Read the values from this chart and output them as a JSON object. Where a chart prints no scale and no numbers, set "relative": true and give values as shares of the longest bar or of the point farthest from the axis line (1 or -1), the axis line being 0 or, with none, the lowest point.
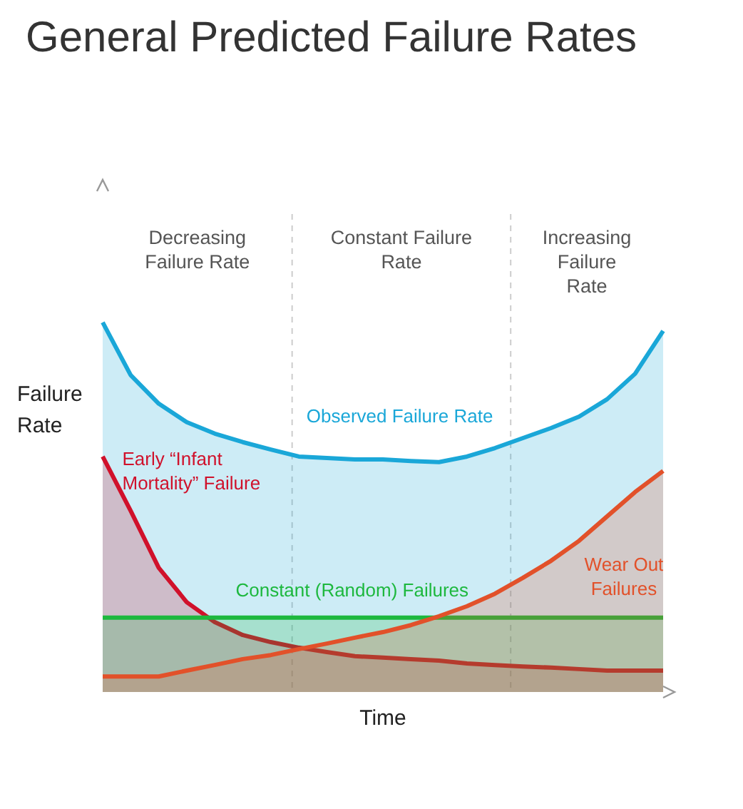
{
  "chart_data": {
    "type": "area",
    "title": "General Predicted Failure Rates",
    "xlabel": "Time",
    "ylabel": "Failure Rate",
    "relative": true,
    "annotations": [
      "Decreasing Failure Rate",
      "Constant Failure Rate",
      "Increasing Failure Rate"
    ],
    "categories": [
      null,
      null,
      null,
      null,
      null,
      null,
      null,
      null,
      null,
      null,
      null,
      null,
      null,
      null,
      null,
      null,
      null,
      null,
      null,
      null,
      null
    ],
    "series": [
      {
        "name": "Observed Failure Rate",
        "color": "#1aa7d8",
        "values": [
          1,
          0.857,
          0.78,
          0.73,
          0.699,
          0.676,
          0.656,
          0.637,
          0.633,
          0.629,
          0.629,
          0.625,
          0.622,
          0.637,
          0.66,
          0.687,
          0.714,
          0.745,
          0.792,
          0.861,
          0.977
        ]
      },
      {
        "name": "Early “Infant Mortality” Failure",
        "color": "#d0112b",
        "values": [
          0.637,
          0.49,
          0.336,
          0.243,
          0.189,
          0.154,
          0.135,
          0.12,
          0.108,
          0.097,
          0.093,
          0.089,
          0.085,
          0.077,
          0.073,
          0.069,
          0.066,
          0.062,
          0.058,
          0.058,
          0.058
        ]
      },
      {
        "name": "Constant (Random) Failures",
        "color": "#1db83e",
        "values": [
          0.201,
          0.201,
          0.201,
          0.201,
          0.201,
          0.201,
          0.201,
          0.201,
          0.201,
          0.201,
          0.201,
          0.201,
          0.201,
          0.201,
          0.201,
          0.201,
          0.201,
          0.201,
          0.201,
          0.201,
          0.201
        ]
      },
      {
        "name": "Wear Out Failures",
        "color": "#e2512a",
        "values": [
          0.042,
          0.042,
          0.042,
          0.058,
          0.073,
          0.089,
          0.1,
          0.116,
          0.131,
          0.147,
          0.162,
          0.181,
          0.205,
          0.232,
          0.266,
          0.309,
          0.355,
          0.409,
          0.475,
          0.541,
          0.598
        ]
      }
    ]
  }
}
